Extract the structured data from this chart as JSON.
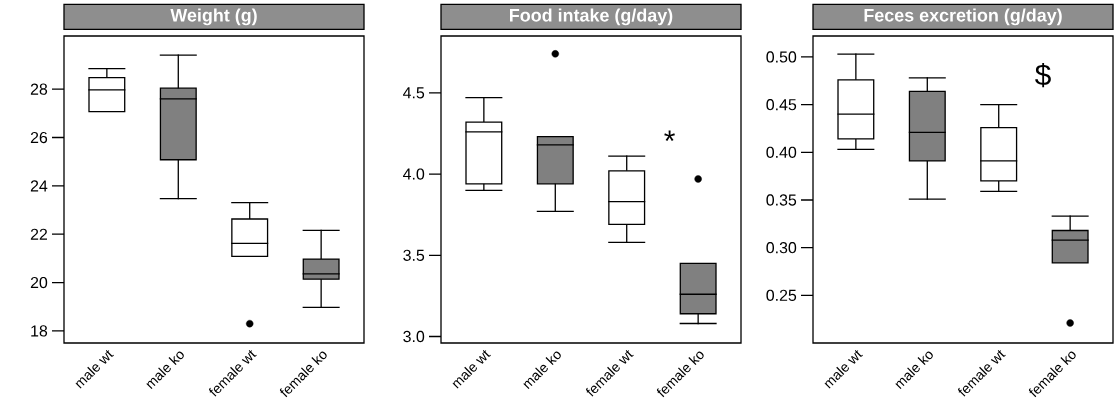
{
  "chart_data": [
    {
      "type": "box",
      "title": "Weight (g)",
      "categories": [
        "male wt",
        "male ko",
        "female wt",
        "female ko"
      ],
      "colors": [
        "#ffffff",
        "#808080",
        "#ffffff",
        "#808080"
      ],
      "boxes": [
        {
          "low": 27.07,
          "q1": 27.07,
          "median": 27.97,
          "q3": 28.48,
          "high": 28.85
        },
        {
          "low": 23.47,
          "q1": 25.08,
          "median": 27.6,
          "q3": 28.04,
          "high": 29.41
        },
        {
          "low": 21.08,
          "q1": 21.08,
          "median": 21.62,
          "q3": 22.63,
          "high": 23.31,
          "outliers": [
            18.3
          ]
        },
        {
          "low": 18.97,
          "q1": 20.14,
          "median": 20.36,
          "q3": 20.97,
          "high": 22.16
        }
      ],
      "ylim": [
        17.5,
        30.2
      ],
      "yticks": [
        18,
        20,
        22,
        24,
        26,
        28
      ]
    },
    {
      "type": "box",
      "title": "Food intake (g/day)",
      "categories": [
        "male wt",
        "male ko",
        "female wt",
        "female ko"
      ],
      "colors": [
        "#ffffff",
        "#808080",
        "#ffffff",
        "#808080"
      ],
      "boxes": [
        {
          "low": 3.9,
          "q1": 3.94,
          "median": 4.26,
          "q3": 4.32,
          "high": 4.47
        },
        {
          "low": 3.77,
          "q1": 3.94,
          "median": 4.18,
          "q3": 4.23,
          "high": 4.23,
          "outliers": [
            4.74
          ]
        },
        {
          "low": 3.58,
          "q1": 3.69,
          "median": 3.83,
          "q3": 4.02,
          "high": 4.11
        },
        {
          "low": 3.08,
          "q1": 3.14,
          "median": 3.26,
          "q3": 3.45,
          "high": 3.45,
          "outliers": [
            3.97
          ]
        }
      ],
      "ylim": [
        2.96,
        4.85
      ],
      "yticks": [
        {
          "value": 3,
          "label": "3.0"
        },
        3.5,
        {
          "value": 4,
          "label": "4.0"
        },
        4.5
      ],
      "annotations": [
        "*"
      ]
    },
    {
      "type": "box",
      "title": "Feces excretion (g/day)",
      "categories": [
        "male wt",
        "male ko",
        "female wt",
        "female ko"
      ],
      "colors": [
        "#ffffff",
        "#808080",
        "#ffffff",
        "#808080"
      ],
      "boxes": [
        {
          "low": 0.403,
          "q1": 0.414,
          "median": 0.44,
          "q3": 0.476,
          "high": 0.503
        },
        {
          "low": 0.351,
          "q1": 0.391,
          "median": 0.421,
          "q3": 0.464,
          "high": 0.478
        },
        {
          "low": 0.359,
          "q1": 0.37,
          "median": 0.391,
          "q3": 0.426,
          "high": 0.45
        },
        {
          "low": 0.284,
          "q1": 0.284,
          "median": 0.308,
          "q3": 0.318,
          "high": 0.333,
          "outliers": [
            0.221
          ]
        }
      ],
      "ylim": [
        0.2,
        0.522
      ],
      "yticks": [
        0.25,
        {
          "value": 0.3,
          "label": "0.30"
        },
        0.35,
        {
          "value": 0.4,
          "label": "0.40"
        },
        0.45,
        {
          "value": 0.5,
          "label": "0.50"
        }
      ],
      "annotations": [
        "$"
      ]
    }
  ]
}
